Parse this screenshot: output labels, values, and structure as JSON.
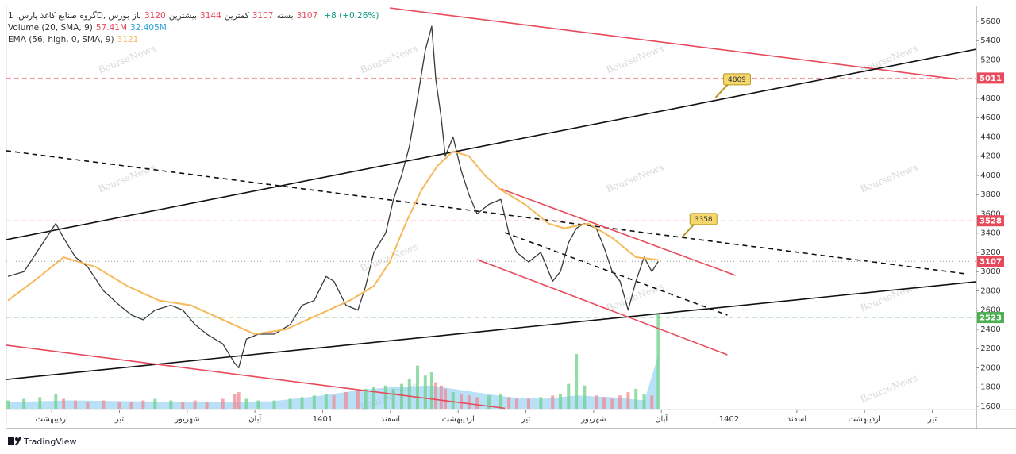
{
  "chart_data": {
    "type": "line",
    "header": {
      "symbol": "گروه صنایع کاغذ پارس, 1D, بورس",
      "ohlc": [
        {
          "label": "باز",
          "value": 3120
        },
        {
          "label": "بیشترین",
          "value": 3144
        },
        {
          "label": "کمترین",
          "value": 3107
        },
        {
          "label": "بسته",
          "value": 3107
        }
      ],
      "change": "+8 (+0.26%)"
    },
    "xlim": [
      0.66,
      29.3
    ],
    "xticks": [
      {
        "value": 2,
        "label": "اردیبهشت"
      },
      {
        "value": 4,
        "label": "تیر"
      },
      {
        "value": 6,
        "label": "شهریور"
      },
      {
        "value": 8,
        "label": "آبان"
      },
      {
        "value": 10,
        "label": "1401"
      },
      {
        "value": 12,
        "label": "اسفند"
      },
      {
        "value": 14,
        "label": "اردیبهشت"
      },
      {
        "value": 16,
        "label": "تیر"
      },
      {
        "value": 18,
        "label": "شهریور"
      },
      {
        "value": 20,
        "label": "آبان"
      },
      {
        "value": 22,
        "label": "1402"
      },
      {
        "value": 24,
        "label": "اسفند"
      },
      {
        "value": 26,
        "label": "اردیبهشت"
      },
      {
        "value": 28,
        "label": "تیر"
      }
    ],
    "ylim": [
      1575,
      5740
    ],
    "yticks": [
      1600,
      1800,
      2000,
      2200,
      2400,
      2600,
      2800,
      3000,
      3200,
      3400,
      3600,
      3800,
      4000,
      4200,
      4400,
      4600,
      4800,
      5000,
      5200,
      5400,
      5600
    ],
    "grid": false,
    "series": [
      {
        "color": "#3a3a3a",
        "x": [
          0.71,
          1.18,
          1.65,
          2.12,
          2.35,
          2.7,
          3.06,
          3.53,
          4.0,
          4.35,
          4.7,
          5.05,
          5.52,
          5.87,
          6.23,
          6.58,
          7.05,
          7.4,
          7.52,
          7.75,
          8.1,
          8.57,
          9.04,
          9.39,
          9.75,
          10.1,
          10.33,
          10.69,
          11.04,
          11.27,
          11.51,
          11.86,
          12.09,
          12.33,
          12.56,
          12.8,
          13.03,
          13.22,
          13.34,
          13.5,
          13.62,
          13.85,
          14.09,
          14.32,
          14.56,
          14.91,
          15.26,
          15.5,
          15.73,
          16.08,
          16.44,
          16.79,
          17.02,
          17.26,
          17.49,
          17.73,
          18.08,
          18.31,
          18.55,
          18.78,
          19.02,
          19.25,
          19.49,
          19.72,
          19.91
        ],
        "y": [
          2950,
          3000,
          3250,
          3500,
          3350,
          3150,
          3050,
          2800,
          2650,
          2550,
          2500,
          2600,
          2650,
          2600,
          2450,
          2350,
          2250,
          2050,
          2000,
          2300,
          2350,
          2350,
          2450,
          2650,
          2700,
          2950,
          2900,
          2650,
          2600,
          2850,
          3200,
          3400,
          3750,
          4000,
          4300,
          4800,
          5300,
          5550,
          5000,
          4600,
          4200,
          4400,
          4050,
          3800,
          3600,
          3700,
          3750,
          3400,
          3200,
          3100,
          3200,
          2900,
          3000,
          3300,
          3450,
          3500,
          3450,
          3250,
          3000,
          2900,
          2600,
          2900,
          3150,
          3000,
          3107
        ]
      },
      {
        "name": "EMA (56, high, 0, SMA, 9)",
        "color": "#f5b95a",
        "x": [
          0.71,
          1.65,
          2.35,
          3.29,
          4.23,
          5.17,
          6.11,
          7.05,
          7.99,
          8.92,
          9.86,
          10.8,
          11.51,
          11.98,
          12.45,
          12.92,
          13.39,
          13.85,
          14.32,
          14.79,
          15.26,
          15.97,
          16.67,
          17.14,
          17.85,
          18.55,
          19.25,
          19.91
        ],
        "y": [
          2700,
          2950,
          3150,
          3050,
          2850,
          2700,
          2650,
          2500,
          2350,
          2400,
          2550,
          2700,
          2850,
          3100,
          3500,
          3850,
          4100,
          4250,
          4200,
          4000,
          3850,
          3700,
          3500,
          3450,
          3500,
          3350,
          3150,
          3121
        ]
      }
    ],
    "volume": {
      "name": "Volume (20, SMA, 9)",
      "up_color": "#6fcf8a",
      "down_color": "#f08a94",
      "values": [
        5,
        6,
        7,
        9,
        6,
        5,
        4,
        5,
        4,
        4,
        5,
        6,
        5,
        4,
        5,
        4,
        6,
        9,
        10,
        6,
        5,
        5,
        6,
        7,
        8,
        9,
        8,
        10,
        11,
        12,
        13,
        14,
        12,
        15,
        18,
        26,
        20,
        22,
        16,
        14,
        12,
        10,
        9,
        8,
        7,
        8,
        9,
        7,
        6,
        6,
        7,
        8,
        9,
        15,
        33,
        14,
        8,
        7,
        6,
        8,
        10,
        12,
        9,
        8,
        57.41
      ],
      "last_label": "57.41M",
      "last_color": "#e8495b",
      "ma_color": "#7ec8f0",
      "ma_x": [
        0.71,
        2.5,
        4.5,
        6.5,
        8.5,
        10,
        11,
        12,
        13.2,
        14.5,
        15.5,
        16.5,
        17.5,
        18.5,
        19.5,
        19.91
      ],
      "ma_values": [
        4,
        5,
        4.5,
        4,
        4.5,
        8,
        11,
        13,
        14,
        10,
        7,
        6,
        8,
        7,
        5,
        32.405
      ],
      "ma_last_label": "32.405M",
      "ma_label_color": "#2a9fd6"
    },
    "levels": [
      {
        "value": 5011,
        "color": "#e8495b"
      },
      {
        "value": 3528,
        "color": "#e8495b"
      },
      {
        "value": 2523,
        "color": "#4caf50"
      }
    ],
    "last_price_color": "#e8495b",
    "trendlines": [
      {
        "color": "#e8495b",
        "dashed": false,
        "x": [
          11.98,
          28.76
        ],
        "y": [
          5740,
          4998
        ]
      },
      {
        "color": "#111111",
        "dashed": false,
        "x": [
          0.66,
          29.3
        ],
        "y": [
          3332,
          5311
        ]
      },
      {
        "color": "#111111",
        "dashed": false,
        "x": [
          0.66,
          29.3
        ],
        "y": [
          1880,
          2895
        ]
      },
      {
        "color": "#111111",
        "dashed": true,
        "x": [
          0.66,
          28.99
        ],
        "y": [
          4256,
          2977
        ]
      },
      {
        "color": "#e8495b",
        "dashed": false,
        "x": [
          0.66,
          15.38
        ],
        "y": [
          2235,
          1580
        ]
      },
      {
        "color": "#e8495b",
        "dashed": false,
        "x": [
          15.26,
          22.19
        ],
        "y": [
          3860,
          2961
        ]
      },
      {
        "color": "#e8495b",
        "dashed": false,
        "x": [
          14.56,
          21.95
        ],
        "y": [
          3126,
          2136
        ]
      },
      {
        "color": "#111111",
        "dashed": true,
        "x": [
          15.38,
          21.95
        ],
        "y": [
          3406,
          2548
        ]
      }
    ],
    "callouts": [
      {
        "x": 21.6,
        "y": 4809
      },
      {
        "x": 20.61,
        "y": 3358
      }
    ],
    "watermark": "BourseNews",
    "footer": "TradingView"
  }
}
